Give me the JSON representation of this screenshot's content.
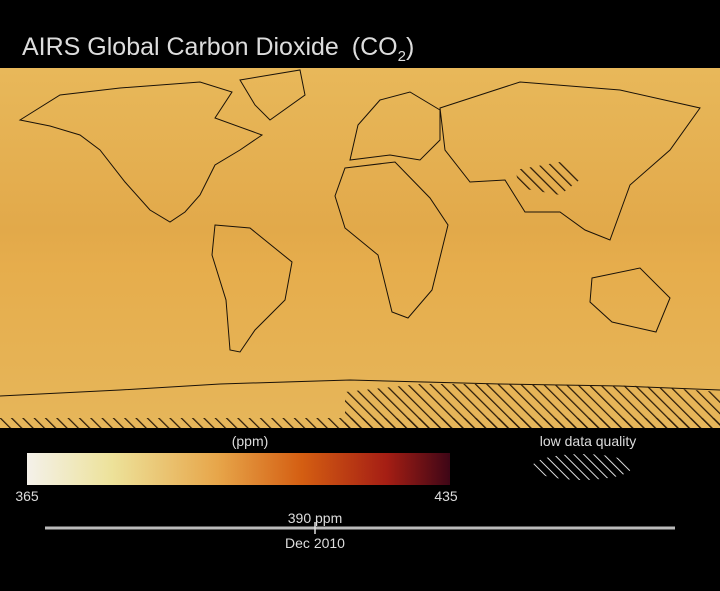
{
  "header": {
    "title": "AIRS Global Carbon Dioxide",
    "formula": "(CO",
    "subscript": "2",
    "formula_end": ")"
  },
  "colorbar": {
    "unit": "(ppm)",
    "min": 365,
    "max": 435
  },
  "legend": {
    "hatch_label": "low data quality"
  },
  "timeline": {
    "value_label": "390 ppm",
    "date": "Dec 2010"
  }
}
